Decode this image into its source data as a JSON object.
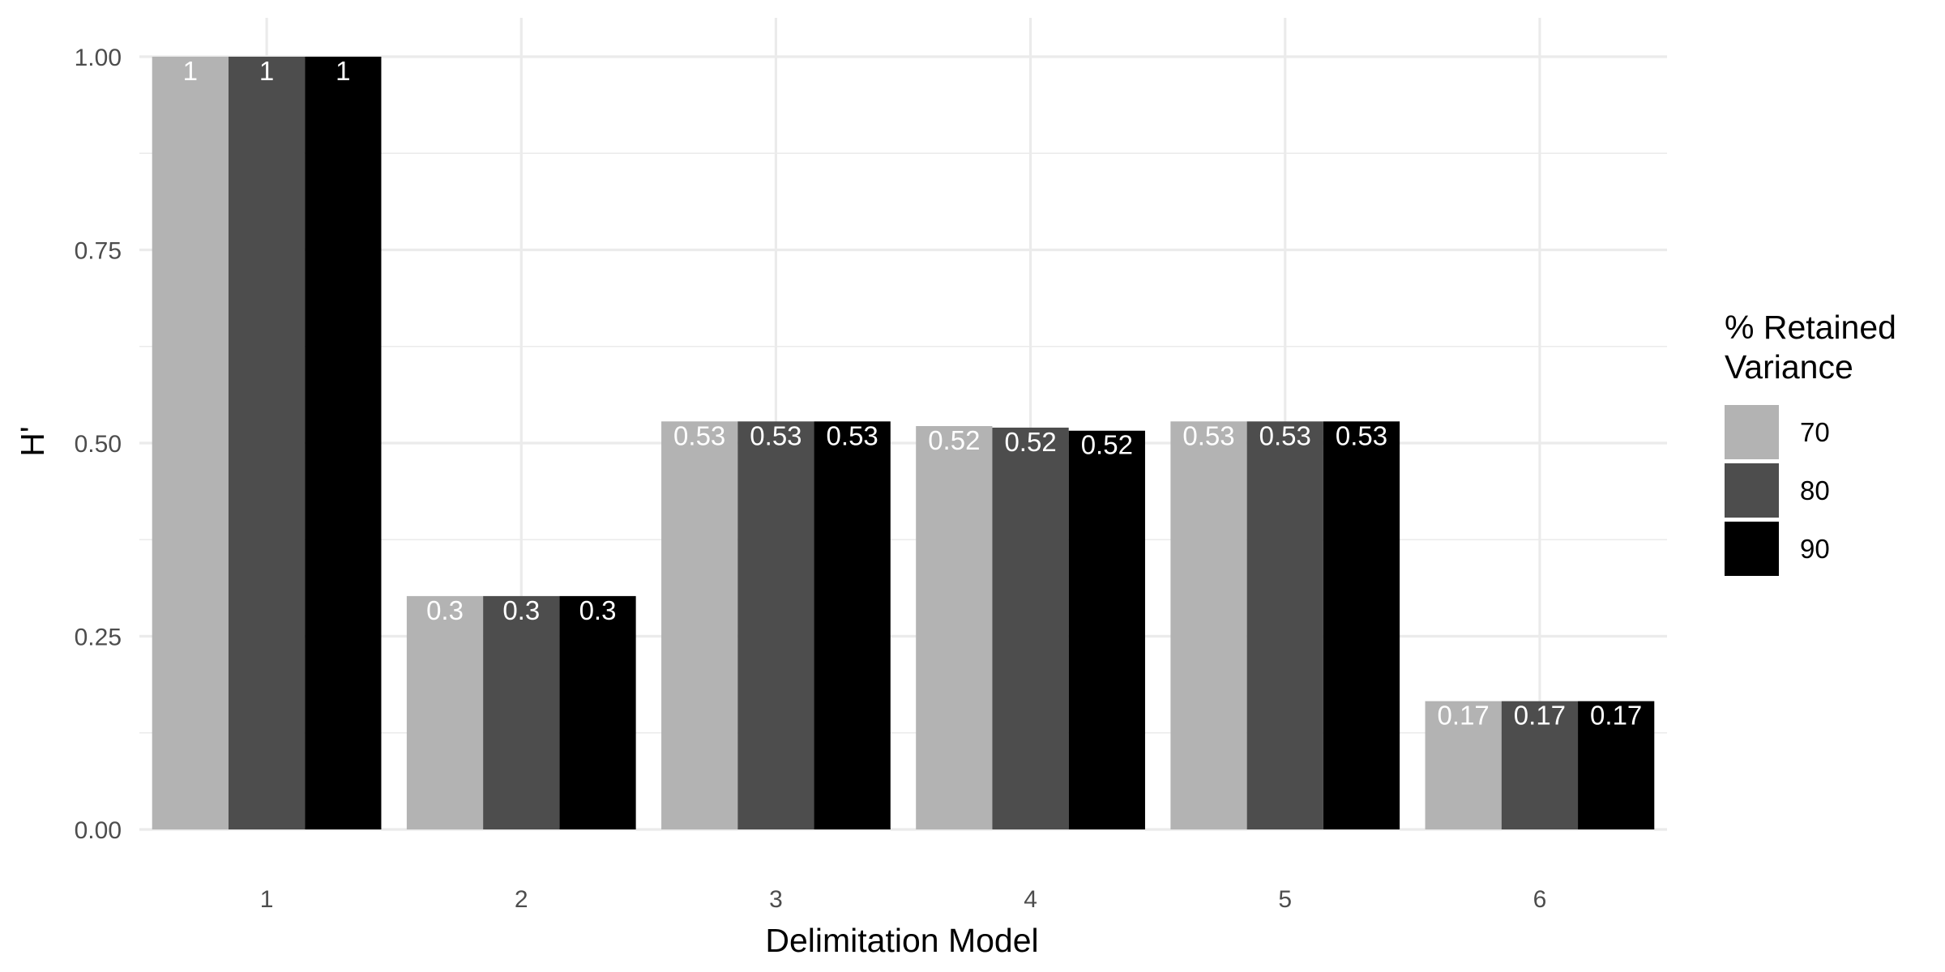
{
  "chart_data": {
    "type": "bar",
    "xlabel": "Delimitation Model",
    "ylabel": "H'",
    "categories": [
      "1",
      "2",
      "3",
      "4",
      "5",
      "6"
    ],
    "ylim": [
      0,
      1.05
    ],
    "yticks": [
      "0.00",
      "0.25",
      "0.50",
      "0.75",
      "1.00"
    ],
    "grid": true,
    "legend": {
      "title_lines": [
        "% Retained",
        "Variance"
      ],
      "position": "right"
    },
    "series": [
      {
        "name": "70",
        "color": "#b3b3b3",
        "values": [
          1.0,
          0.302,
          0.528,
          0.522,
          0.528,
          0.166
        ],
        "labels": [
          "1",
          "0.3",
          "0.53",
          "0.52",
          "0.53",
          "0.17"
        ]
      },
      {
        "name": "80",
        "color": "#4d4d4d",
        "values": [
          1.0,
          0.302,
          0.528,
          0.52,
          0.528,
          0.166
        ],
        "labels": [
          "1",
          "0.3",
          "0.53",
          "0.52",
          "0.53",
          "0.17"
        ]
      },
      {
        "name": "90",
        "color": "#000000",
        "values": [
          1.0,
          0.302,
          0.528,
          0.516,
          0.528,
          0.166
        ],
        "labels": [
          "1",
          "0.3",
          "0.53",
          "0.52",
          "0.53",
          "0.17"
        ]
      }
    ]
  }
}
